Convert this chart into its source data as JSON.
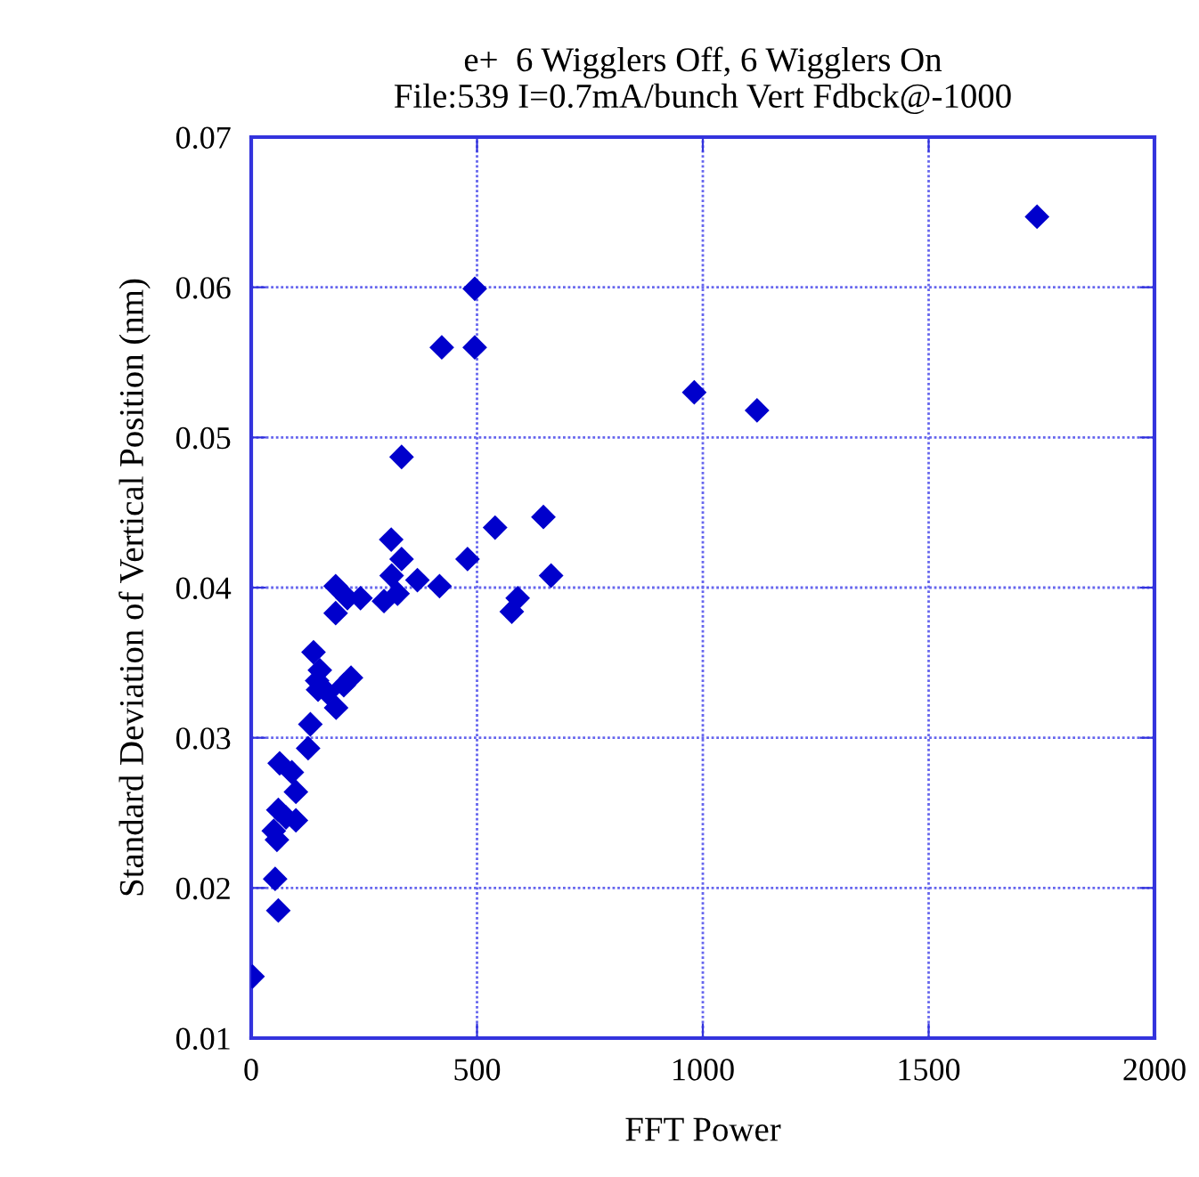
{
  "chart_data": {
    "type": "scatter",
    "title": "e+  6 Wigglers Off, 6 Wigglers On\nFile:539 I=0.7mA/bunch Vert Fdbck@-1000",
    "xlabel": "FFT Power",
    "ylabel": "Standard Deviation of Vertical Position (nm)",
    "x": [
      495,
      422,
      495,
      981,
      1120,
      1740,
      333,
      540,
      647,
      310,
      333,
      479,
      664,
      311,
      368,
      417,
      187,
      213,
      242,
      294,
      324,
      590,
      577,
      187,
      138,
      152,
      146,
      148,
      169,
      221,
      205,
      188,
      131,
      126,
      63,
      90,
      99,
      60,
      99,
      77,
      50,
      57,
      53,
      60,
      3
    ],
    "values": [
      0.0599,
      0.056,
      0.056,
      0.053,
      0.0518,
      0.0647,
      0.0487,
      0.044,
      0.0447,
      0.0432,
      0.0419,
      0.0419,
      0.0408,
      0.0408,
      0.0405,
      0.0401,
      0.0401,
      0.0393,
      0.0393,
      0.0391,
      0.0396,
      0.0393,
      0.0384,
      0.0383,
      0.0357,
      0.0345,
      0.0338,
      0.0332,
      0.033,
      0.034,
      0.0335,
      0.032,
      0.0309,
      0.0293,
      0.0283,
      0.0277,
      0.0264,
      0.0252,
      0.0245,
      0.0247,
      0.0238,
      0.0232,
      0.0206,
      0.0185,
      0.0141
    ],
    "color": "#0000cc",
    "marker": "diamond",
    "xlim": [
      0,
      2000
    ],
    "xticks": [
      0,
      500,
      1000,
      1500,
      2000
    ],
    "ylim": [
      0.01,
      0.07
    ],
    "yticks": [
      {
        "value": 0.01,
        "label": "0.01"
      },
      {
        "value": 0.02,
        "label": "0.02"
      },
      {
        "value": 0.03,
        "label": "0.03"
      },
      {
        "value": 0.04,
        "label": "0.04"
      },
      {
        "value": 0.05,
        "label": "0.05"
      },
      {
        "value": 0.06,
        "label": "0.06"
      },
      {
        "value": 0.07,
        "label": "0.07"
      }
    ],
    "grid": true
  }
}
